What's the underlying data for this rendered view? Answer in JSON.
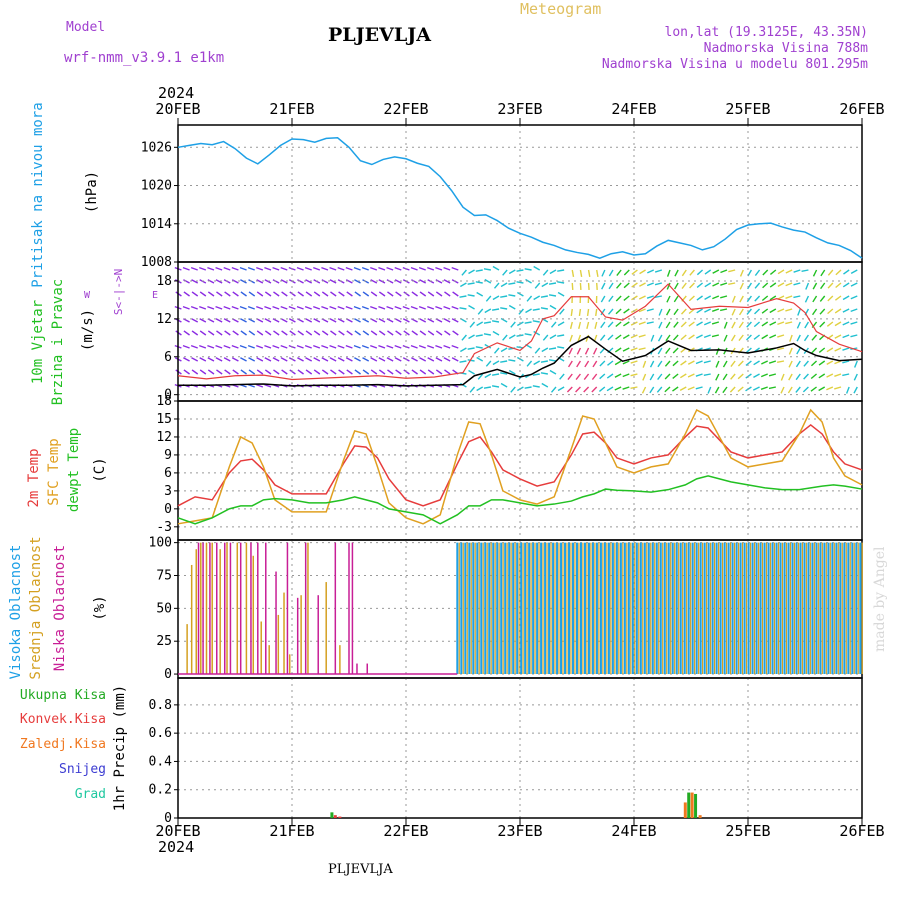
{
  "header": {
    "model_label": "Model",
    "model_name": "wrf-nmm_v3.9.1 e1km",
    "title": "PLJEVLJA",
    "meteogram": "Meteogram",
    "lonlat": "lon,lat (19.3125E, 43.35N)",
    "altitude": "Nadmorska Visina 788m",
    "model_altitude": "Nadmorska Visina u modelu 801.295m",
    "year_top": "2024",
    "year_bottom": "2024",
    "footer": "PLJEVLJA",
    "watermark": "made by Angel"
  },
  "colors": {
    "pressure": "#1ea0e6",
    "t2m": "#e63c3c",
    "sfc": "#e0a020",
    "dew": "#22c022",
    "purple": "#a040d0",
    "high_cloud": "#1ea0e6",
    "mid_cloud": "#d4a020",
    "low_cloud": "#c81e96",
    "total_precip": "#22aa22",
    "conv_precip": "#e63c3c",
    "strat_precip": "#f07820",
    "snow": "#3c3cd2",
    "hail": "#20c8a0",
    "wind_speed": "#000000",
    "gust": "#e63c3c"
  },
  "chart_data": [
    {
      "id": "pressure",
      "type": "line",
      "x_categories": [
        "20FEB",
        "21FEB",
        "22FEB",
        "23FEB",
        "24FEB",
        "25FEB",
        "26FEB"
      ],
      "ylabel_lines": [
        "Pritisak na nivou mora",
        "(hPa)"
      ],
      "yticks": [
        1008,
        1014,
        1020,
        1026
      ],
      "ylim": [
        1008,
        1029.5
      ],
      "grid": true,
      "series": [
        {
          "color_key": "pressure",
          "x": [
            0,
            0.1,
            0.2,
            0.3,
            0.4,
            0.5,
            0.6,
            0.7,
            0.8,
            0.9,
            1.0,
            1.1,
            1.2,
            1.3,
            1.4,
            1.5,
            1.6,
            1.7,
            1.8,
            1.9,
            2.0,
            2.1,
            2.2,
            2.3,
            2.4,
            2.5,
            2.6,
            2.7,
            2.8,
            2.9,
            3.0,
            3.1,
            3.2,
            3.3,
            3.4,
            3.5,
            3.6,
            3.7,
            3.8,
            3.9,
            4.0,
            4.1,
            4.2,
            4.3,
            4.4,
            4.5,
            4.6,
            4.7,
            4.8,
            4.9,
            5.0,
            5.1,
            5.2,
            5.3,
            5.4,
            5.5,
            5.6,
            5.7,
            5.8,
            5.9,
            6.0
          ],
          "y": [
            1026,
            1026.3,
            1026.6,
            1026.4,
            1026.9,
            1025.8,
            1024.3,
            1023.4,
            1024.8,
            1026.3,
            1027.3,
            1027.2,
            1026.8,
            1027.4,
            1027.5,
            1026,
            1023.9,
            1023.3,
            1024.1,
            1024.5,
            1024.2,
            1023.5,
            1023,
            1021.4,
            1019.2,
            1016.6,
            1015.3,
            1015.4,
            1014.5,
            1013.3,
            1012.5,
            1011.9,
            1011.1,
            1010.6,
            1009.9,
            1009.5,
            1009.2,
            1008.6,
            1009.3,
            1009.6,
            1009.1,
            1009.3,
            1010.5,
            1011.4,
            1011.0,
            1010.6,
            1009.9,
            1010.4,
            1011.6,
            1013.1,
            1013.8,
            1014.0,
            1014.1,
            1013.5,
            1013.0,
            1012.7,
            1011.8,
            1011.0,
            1010.6,
            1009.8,
            1008.6
          ]
        }
      ]
    },
    {
      "id": "wind",
      "type": "line",
      "x_categories": [
        "20FEB",
        "21FEB",
        "22FEB",
        "23FEB",
        "24FEB",
        "25FEB",
        "26FEB"
      ],
      "ylabel_lines": [
        "10m Vjetar",
        "Brzina i Pravac",
        "(m/s)"
      ],
      "compass": "W  <-- E",
      "compass_ns": "S<-|->N",
      "compass_w": "W",
      "compass_e": "E",
      "yticks": [
        0,
        6,
        12,
        18
      ],
      "ylim": [
        -1,
        21
      ],
      "grid": true,
      "series": [
        {
          "color_key": "wind_speed",
          "x": [
            0,
            0.25,
            0.5,
            0.75,
            1.0,
            1.25,
            1.5,
            1.75,
            2.0,
            2.25,
            2.5,
            2.6,
            2.8,
            3.0,
            3.1,
            3.2,
            3.3,
            3.45,
            3.6,
            3.75,
            3.9,
            4.1,
            4.3,
            4.5,
            4.75,
            5.0,
            5.25,
            5.4,
            5.5,
            5.6,
            5.8,
            6.0
          ],
          "y": [
            1.5,
            1.5,
            1.6,
            1.7,
            1.4,
            1.5,
            1.5,
            1.6,
            1.4,
            1.5,
            1.6,
            3.0,
            4.0,
            2.8,
            3.2,
            4.2,
            5.0,
            7.8,
            9.2,
            7.2,
            5.3,
            6.2,
            8.5,
            7.0,
            7.1,
            6.6,
            7.4,
            8.1,
            7.0,
            6.2,
            5.4,
            5.6
          ]
        },
        {
          "color_key": "gust",
          "x": [
            0,
            0.25,
            0.5,
            0.75,
            1.0,
            1.25,
            1.5,
            1.75,
            2.0,
            2.25,
            2.5,
            2.6,
            2.8,
            3.0,
            3.1,
            3.2,
            3.3,
            3.45,
            3.6,
            3.75,
            3.9,
            4.1,
            4.3,
            4.5,
            4.75,
            5.0,
            5.25,
            5.4,
            5.5,
            5.6,
            5.8,
            6.0
          ],
          "y": [
            3.0,
            2.5,
            3.0,
            3.1,
            2.4,
            2.6,
            2.8,
            3.0,
            2.6,
            2.8,
            3.5,
            6.5,
            8.2,
            7.0,
            8.5,
            12.0,
            12.5,
            15.5,
            15.5,
            12.3,
            11.8,
            14.0,
            17.5,
            13.5,
            14.0,
            13.8,
            15.2,
            14.5,
            13.0,
            10.0,
            8.0,
            6.8
          ]
        }
      ]
    },
    {
      "id": "temperature",
      "type": "line",
      "x_categories": [
        "20FEB",
        "21FEB",
        "22FEB",
        "23FEB",
        "24FEB",
        "25FEB",
        "26FEB"
      ],
      "ylabel_lines": [
        "2m Temp",
        "SFC Temp",
        "dewpt Temp",
        "(C)"
      ],
      "yticks": [
        -3,
        0,
        3,
        6,
        9,
        12,
        15,
        18
      ],
      "ylim": [
        -5.2,
        18
      ],
      "grid": true,
      "series": [
        {
          "color_key": "t2m",
          "x": [
            0,
            0.15,
            0.3,
            0.45,
            0.55,
            0.65,
            0.75,
            0.85,
            1.0,
            1.15,
            1.3,
            1.45,
            1.55,
            1.65,
            1.75,
            1.85,
            2.0,
            2.15,
            2.3,
            2.45,
            2.55,
            2.65,
            2.75,
            2.85,
            3.0,
            3.15,
            3.3,
            3.45,
            3.55,
            3.65,
            3.75,
            3.85,
            4.0,
            4.15,
            4.3,
            4.45,
            4.55,
            4.65,
            4.75,
            4.85,
            5.0,
            5.15,
            5.3,
            5.45,
            5.55,
            5.65,
            5.75,
            5.85,
            6.0
          ],
          "y": [
            0.5,
            2.0,
            1.5,
            6.0,
            8.0,
            8.3,
            6.5,
            4.0,
            2.5,
            2.5,
            2.5,
            7.5,
            10.5,
            10.3,
            8.5,
            5.0,
            1.5,
            0.5,
            1.5,
            7.5,
            11.2,
            12.0,
            9.5,
            6.5,
            5.0,
            3.8,
            4.5,
            9.0,
            12.5,
            12.8,
            11.0,
            8.5,
            7.5,
            8.5,
            9.0,
            12.0,
            13.8,
            13.5,
            11.5,
            9.5,
            8.5,
            9.0,
            9.5,
            12.5,
            14.0,
            12.5,
            9.5,
            7.5,
            6.5
          ]
        },
        {
          "color_key": "sfc",
          "x": [
            0,
            0.15,
            0.3,
            0.45,
            0.55,
            0.65,
            0.75,
            0.85,
            1.0,
            1.15,
            1.3,
            1.45,
            1.55,
            1.65,
            1.75,
            1.85,
            2.0,
            2.15,
            2.3,
            2.45,
            2.55,
            2.65,
            2.75,
            2.85,
            3.0,
            3.15,
            3.3,
            3.45,
            3.55,
            3.65,
            3.75,
            3.85,
            4.0,
            4.15,
            4.3,
            4.45,
            4.55,
            4.65,
            4.75,
            4.85,
            5.0,
            5.15,
            5.3,
            5.45,
            5.55,
            5.65,
            5.75,
            5.85,
            6.0
          ],
          "y": [
            -2.5,
            -2.0,
            -1.5,
            7.0,
            12.0,
            11.0,
            7.0,
            1.5,
            -0.5,
            -0.5,
            -0.5,
            8.0,
            13.0,
            12.5,
            7.0,
            1.0,
            -1.5,
            -2.5,
            -1.0,
            9.0,
            14.5,
            14.2,
            9.0,
            3.0,
            1.5,
            0.8,
            2.0,
            10.0,
            15.5,
            15.0,
            11.0,
            7.0,
            6.0,
            7.0,
            7.5,
            12.5,
            16.5,
            15.5,
            12.0,
            8.5,
            7.0,
            7.5,
            8.0,
            12.5,
            16.5,
            14.5,
            8.5,
            5.5,
            4.0
          ]
        },
        {
          "color_key": "dew",
          "x": [
            0,
            0.15,
            0.3,
            0.45,
            0.55,
            0.65,
            0.75,
            0.85,
            1.0,
            1.15,
            1.3,
            1.45,
            1.55,
            1.65,
            1.75,
            1.85,
            2.0,
            2.15,
            2.3,
            2.45,
            2.55,
            2.65,
            2.75,
            2.85,
            3.0,
            3.15,
            3.3,
            3.45,
            3.55,
            3.65,
            3.75,
            3.85,
            4.0,
            4.15,
            4.3,
            4.45,
            4.55,
            4.65,
            4.75,
            4.85,
            5.0,
            5.15,
            5.3,
            5.45,
            5.55,
            5.65,
            5.75,
            5.85,
            6.0
          ],
          "y": [
            -1.5,
            -2.5,
            -1.5,
            0.0,
            0.5,
            0.5,
            1.5,
            1.7,
            1.5,
            1.0,
            1.0,
            1.5,
            2.0,
            1.5,
            1.0,
            0.0,
            -0.5,
            -1.0,
            -2.5,
            -1.0,
            0.5,
            0.5,
            1.5,
            1.5,
            1.0,
            0.5,
            0.8,
            1.3,
            2.0,
            2.5,
            3.3,
            3.1,
            3.0,
            2.8,
            3.2,
            4.0,
            5.0,
            5.5,
            5.0,
            4.5,
            4.0,
            3.5,
            3.2,
            3.2,
            3.5,
            3.8,
            4.0,
            3.8,
            3.3
          ]
        }
      ]
    },
    {
      "id": "clouds",
      "type": "bar",
      "x_categories": [
        "20FEB",
        "21FEB",
        "22FEB",
        "23FEB",
        "24FEB",
        "25FEB",
        "26FEB"
      ],
      "ylabel_lines": [
        "Visoka Oblacnost",
        "Srednja Oblacnost",
        "Niska Oblacnost",
        "(%)"
      ],
      "yticks": [
        0,
        25,
        50,
        75,
        100
      ],
      "ylim": [
        -3,
        102
      ],
      "grid": true,
      "low": {
        "color_key": "low_cloud",
        "x": [
          0.18,
          0.22,
          0.28,
          0.34,
          0.41,
          0.46,
          0.55,
          0.64,
          0.7,
          0.77,
          0.86,
          0.96,
          1.05,
          1.12,
          1.23,
          1.38,
          1.5,
          1.53,
          1.57,
          1.66
        ],
        "y": [
          100,
          100,
          100,
          100,
          100,
          100,
          100,
          100,
          100,
          100,
          78,
          100,
          58,
          100,
          60,
          100,
          100,
          100,
          8,
          8
        ]
      },
      "mid": {
        "color_key": "mid_cloud",
        "x": [
          0.08,
          0.12,
          0.16,
          0.2,
          0.25,
          0.3,
          0.37,
          0.43,
          0.52,
          0.6,
          0.66,
          0.73,
          0.8,
          0.88,
          0.93,
          0.98,
          1.08,
          1.14,
          1.3,
          1.42
        ],
        "y": [
          38,
          83,
          95,
          100,
          100,
          100,
          95,
          100,
          100,
          100,
          90,
          40,
          22,
          45,
          62,
          15,
          60,
          100,
          70,
          22
        ]
      },
      "high_start": 2.45,
      "high_end": 6.0,
      "high_value": 100
    },
    {
      "id": "precip",
      "type": "bar",
      "x_categories": [
        "20FEB",
        "21FEB",
        "22FEB",
        "23FEB",
        "24FEB",
        "25FEB",
        "26FEB"
      ],
      "ylabel_lines": [
        "1hr Precip (mm)"
      ],
      "legend": [
        "Ukupna Kisa",
        "Konvek.Kisa",
        "Zaledj.Kisa",
        "Snijeg",
        "Grad"
      ],
      "yticks": [
        0,
        0.2,
        0.4,
        0.6,
        0.8
      ],
      "ylim": [
        0,
        0.99
      ],
      "grid": true,
      "bars": [
        {
          "x": 1.35,
          "y": 0.04,
          "color_key": "total_precip"
        },
        {
          "x": 1.38,
          "y": 0.02,
          "color_key": "conv_precip"
        },
        {
          "x": 1.42,
          "y": 0.01,
          "color_key": "conv_precip"
        },
        {
          "x": 4.45,
          "y": 0.11,
          "color_key": "strat_precip"
        },
        {
          "x": 4.48,
          "y": 0.18,
          "color_key": "total_precip"
        },
        {
          "x": 4.51,
          "y": 0.18,
          "color_key": "strat_precip"
        },
        {
          "x": 4.54,
          "y": 0.17,
          "color_key": "total_precip"
        },
        {
          "x": 4.58,
          "y": 0.02,
          "color_key": "strat_precip"
        }
      ]
    }
  ]
}
